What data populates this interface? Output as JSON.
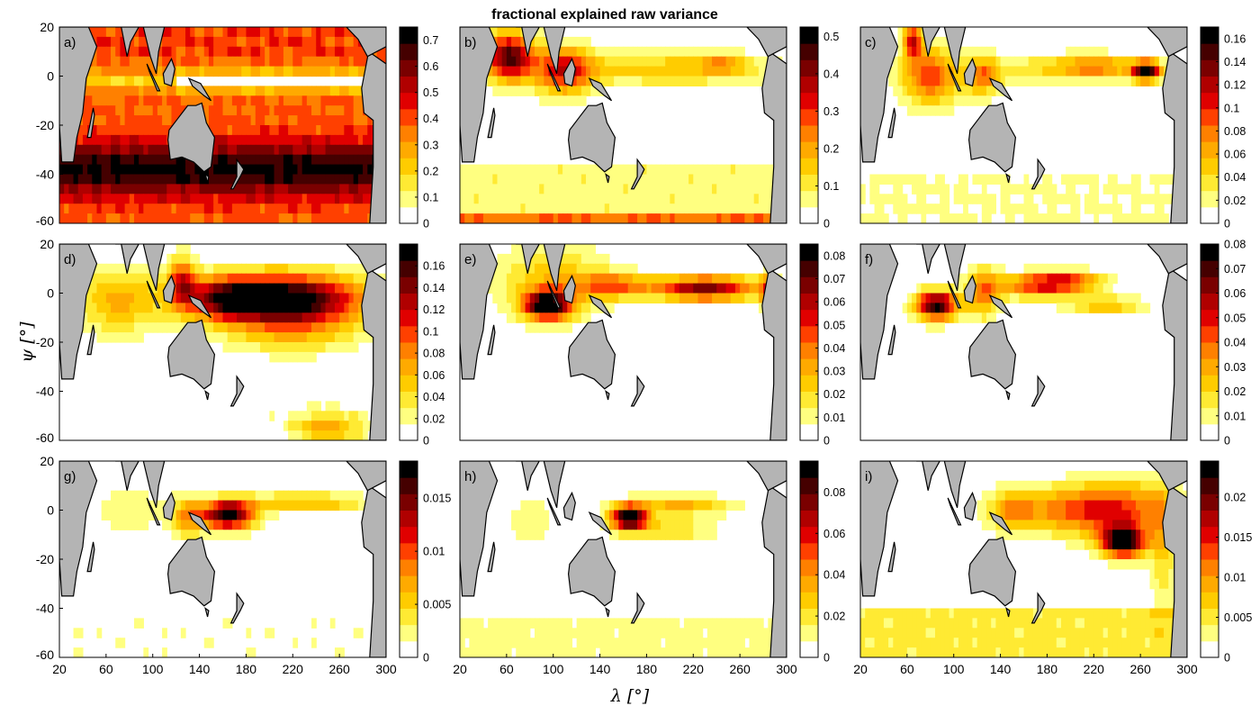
{
  "title": "fractional explained raw variance",
  "colors": {
    "land": "#b4b4b4",
    "coast": "#000000",
    "scale": [
      "#ffffff",
      "#ffff80",
      "#ffea33",
      "#ffcc00",
      "#ffaa00",
      "#ff8000",
      "#ff4000",
      "#e00000",
      "#b00000",
      "#7a0000",
      "#450000",
      "#000000"
    ]
  },
  "chart_data": {
    "type": "heatmap",
    "grid": {
      "rows": 3,
      "cols": 3
    },
    "xlabel": "λ [°]",
    "ylabel": "ψ [°]",
    "xlim": [
      20,
      300
    ],
    "ylim": [
      -60,
      20
    ],
    "xticks": [
      20,
      60,
      100,
      140,
      180,
      220,
      260,
      300
    ],
    "yticks": [
      20,
      0,
      -20,
      -40,
      -60
    ],
    "panels": [
      {
        "label": "a)",
        "clim": [
          0,
          0.75
        ],
        "cticks": [
          0,
          0.1,
          0.2,
          0.3,
          0.4,
          0.5,
          0.6,
          0.7
        ],
        "ctick_labels": [
          "0",
          "0.1",
          "0.2",
          "0.3",
          "0.4",
          "0.5",
          "0.6",
          "0.7"
        ],
        "pattern": "a"
      },
      {
        "label": "b)",
        "clim": [
          0,
          0.525
        ],
        "cticks": [
          0,
          0.1,
          0.2,
          0.3,
          0.4,
          0.5
        ],
        "ctick_labels": [
          "0",
          "0.1",
          "0.2",
          "0.3",
          "0.4",
          "0.5"
        ],
        "pattern": "b"
      },
      {
        "label": "c)",
        "clim": [
          0,
          0.17
        ],
        "cticks": [
          0,
          0.02,
          0.04,
          0.06,
          0.08,
          0.1,
          0.12,
          0.14,
          0.16
        ],
        "ctick_labels": [
          "0",
          "0.02",
          "0.04",
          "0.06",
          "0.08",
          "0.1",
          "0.12",
          "0.14",
          "0.16"
        ],
        "pattern": "c"
      },
      {
        "label": "d)",
        "clim": [
          0,
          0.18
        ],
        "cticks": [
          0,
          0.02,
          0.04,
          0.06,
          0.08,
          0.1,
          0.12,
          0.14,
          0.16
        ],
        "ctick_labels": [
          "0",
          "0.02",
          "0.04",
          "0.06",
          "0.08",
          "0.1",
          "0.12",
          "0.14",
          "0.16"
        ],
        "pattern": "d"
      },
      {
        "label": "e)",
        "clim": [
          0,
          0.085
        ],
        "cticks": [
          0,
          0.01,
          0.02,
          0.03,
          0.04,
          0.05,
          0.06,
          0.07,
          0.08
        ],
        "ctick_labels": [
          "0",
          "0.01",
          "0.02",
          "0.03",
          "0.04",
          "0.05",
          "0.06",
          "0.07",
          "0.08"
        ],
        "pattern": "e"
      },
      {
        "label": "f)",
        "clim": [
          0,
          0.08
        ],
        "cticks": [
          0,
          0.01,
          0.02,
          0.03,
          0.04,
          0.05,
          0.06,
          0.07,
          0.08
        ],
        "ctick_labels": [
          "0",
          "0.01",
          "0.02",
          "0.03",
          "0.04",
          "0.05",
          "0.06",
          "0.07",
          "0.08"
        ],
        "pattern": "f"
      },
      {
        "label": "g)",
        "clim": [
          0,
          0.0185
        ],
        "cticks": [
          0,
          0.005,
          0.01,
          0.015
        ],
        "ctick_labels": [
          "0",
          "0.005",
          "0.01",
          "0.015"
        ],
        "pattern": "g"
      },
      {
        "label": "h)",
        "clim": [
          0,
          0.095
        ],
        "cticks": [
          0,
          0.02,
          0.04,
          0.06,
          0.08
        ],
        "ctick_labels": [
          "0",
          "0.02",
          "0.04",
          "0.06",
          "0.08"
        ],
        "pattern": "h"
      },
      {
        "label": "i)",
        "clim": [
          0,
          0.0245
        ],
        "cticks": [
          0,
          0.005,
          0.01,
          0.015,
          0.02
        ],
        "ctick_labels": [
          "0",
          "0.005",
          "0.01",
          "0.015",
          "0.02"
        ],
        "pattern": "i"
      }
    ]
  }
}
